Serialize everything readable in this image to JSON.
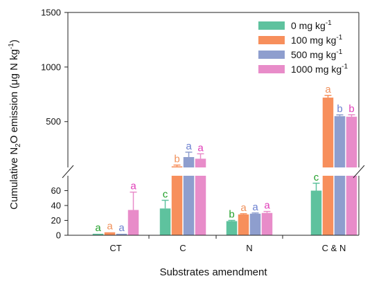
{
  "chart_data": {
    "type": "bar",
    "categories": [
      "CT",
      "C",
      "N",
      "C & N"
    ],
    "xlabel": "Substrates amendment",
    "ylabel": {
      "prefix": "Cumulative N",
      "sub": "2",
      "middle": "O emission (μg N kg",
      "sup": "-1",
      "suffix": ")"
    },
    "ylim": [
      0,
      1500
    ],
    "axis_break": {
      "lower": [
        0,
        80
      ],
      "upper": [
        80,
        1500
      ]
    },
    "lower_ticks": [
      "0",
      "20",
      "40",
      "60"
    ],
    "upper_ticks": [
      "500",
      "1000",
      "1500"
    ],
    "series": [
      {
        "name": "0 mg kg",
        "name_sup": "-1",
        "color": "#5ec29e",
        "values": [
          2,
          36,
          19,
          60
        ],
        "errors": [
          0,
          11,
          1,
          10
        ],
        "letters": [
          "a",
          "c",
          "b",
          "c"
        ],
        "letter_color": "#22a02a"
      },
      {
        "name": "100 mg kg",
        "name_sup": "-1",
        "color": "#f78f5c",
        "values": [
          4,
          90,
          28,
          720
        ],
        "errors": [
          0,
          12,
          1,
          20
        ],
        "letters": [
          "a",
          "b",
          "a",
          "a"
        ],
        "letter_color": "#f0905a"
      },
      {
        "name": "500 mg kg",
        "name_sup": "-1",
        "color": "#8e9ece",
        "values": [
          2,
          175,
          29,
          550
        ],
        "errors": [
          0,
          45,
          1,
          12
        ],
        "letters": [
          "a",
          "a",
          "a",
          "b"
        ],
        "letter_color": "#6a7fd0"
      },
      {
        "name": "1000 mg kg",
        "name_sup": "-1",
        "color": "#e88cc9",
        "values": [
          34,
          160,
          30,
          545
        ],
        "errors": [
          24,
          45,
          2,
          18
        ],
        "letters": [
          "a",
          "a",
          "a",
          "b"
        ],
        "letter_color": "#e03cb8"
      }
    ],
    "legend_position": "top-right",
    "grid": false
  }
}
